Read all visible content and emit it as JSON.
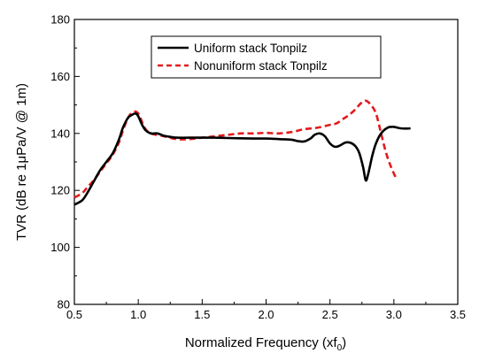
{
  "chart_data": {
    "type": "line",
    "xlabel": "Normalized Frequency (xf",
    "xlabel_sub": "0",
    "xlabel_tail": ")",
    "ylabel": "TVR (dB re 1μPa/V @ 1m)",
    "xlim": [
      0.5,
      3.5
    ],
    "ylim": [
      80,
      180
    ],
    "xticks": [
      0.5,
      1.0,
      1.5,
      2.0,
      2.5,
      3.0,
      3.5
    ],
    "xtick_labels": [
      "0.5",
      "1.0",
      "1.5",
      "2.0",
      "2.5",
      "3.0",
      "3.5"
    ],
    "yticks": [
      80,
      100,
      120,
      140,
      160,
      180
    ],
    "ytick_labels": [
      "80",
      "100",
      "120",
      "140",
      "160",
      "180"
    ],
    "grid": false,
    "legend_position": "top-center",
    "series": [
      {
        "name": "Uniform stack Tonpilz",
        "color": "#000000",
        "style": "solid",
        "x": [
          0.5,
          0.56,
          0.6,
          0.65,
          0.7,
          0.75,
          0.8,
          0.85,
          0.88,
          0.92,
          0.95,
          0.98,
          1.0,
          1.03,
          1.06,
          1.1,
          1.15,
          1.2,
          1.25,
          1.3,
          1.4,
          1.5,
          1.6,
          1.7,
          1.8,
          1.9,
          2.0,
          2.1,
          2.2,
          2.25,
          2.3,
          2.35,
          2.38,
          2.42,
          2.46,
          2.5,
          2.54,
          2.58,
          2.62,
          2.66,
          2.7,
          2.73,
          2.76,
          2.78,
          2.8,
          2.83,
          2.86,
          2.9,
          2.95,
          3.0,
          3.05,
          3.1,
          3.13
        ],
        "y": [
          115,
          116.5,
          119,
          123,
          127,
          130,
          133,
          138,
          142,
          145.5,
          146.5,
          147,
          146,
          143,
          141,
          140,
          140,
          139.2,
          138.8,
          138.5,
          138.5,
          138.5,
          138.5,
          138.4,
          138.3,
          138.2,
          138.2,
          138,
          137.8,
          137.3,
          137.2,
          138.3,
          139.5,
          140,
          139,
          136.5,
          135.3,
          135.8,
          136.8,
          136.7,
          135.5,
          133,
          128,
          123.5,
          126,
          132,
          136.5,
          140,
          142,
          142.3,
          141.8,
          141.7,
          141.8
        ]
      },
      {
        "name": "Nonuniform stack Tonpilz",
        "color": "#e31a1c",
        "style": "dashed",
        "x": [
          0.5,
          0.56,
          0.6,
          0.65,
          0.7,
          0.75,
          0.8,
          0.85,
          0.88,
          0.92,
          0.96,
          1.0,
          1.05,
          1.1,
          1.2,
          1.3,
          1.4,
          1.5,
          1.6,
          1.7,
          1.8,
          1.9,
          2.0,
          2.1,
          2.2,
          2.3,
          2.4,
          2.5,
          2.55,
          2.6,
          2.65,
          2.7,
          2.74,
          2.78,
          2.82,
          2.86,
          2.9,
          2.94,
          2.98,
          3.02
        ],
        "y": [
          117.5,
          119,
          121,
          123.5,
          126.5,
          129.5,
          132.5,
          137,
          141,
          145.5,
          147.5,
          147,
          142,
          140,
          139,
          138,
          138,
          138.5,
          139,
          139.5,
          140,
          140,
          140.2,
          140,
          140.5,
          141.5,
          142,
          143,
          143.5,
          145,
          146.5,
          148.5,
          150.5,
          151.5,
          150,
          147,
          140,
          133,
          128,
          124
        ]
      }
    ]
  }
}
